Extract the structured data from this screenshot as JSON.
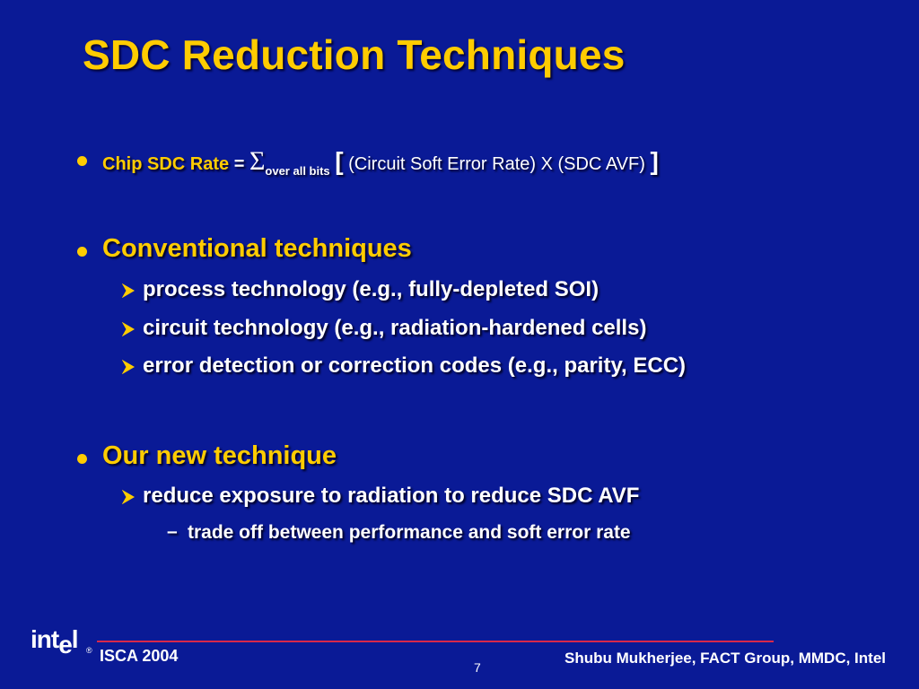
{
  "title": "SDC Reduction Techniques",
  "formula": {
    "term": "Chip SDC Rate",
    "equals": "=",
    "sigma": "Σ",
    "subscript": "over all bits",
    "open_bracket": "[",
    "body": "(Circuit Soft Error Rate) X (SDC AVF)",
    "close_bracket": "]"
  },
  "sections": [
    {
      "heading": "Conventional techniques",
      "items": [
        "process technology (e.g., fully-depleted SOI)",
        "circuit technology (e.g., radiation-hardened cells)",
        "error detection or correction codes (e.g., parity, ECC)"
      ]
    },
    {
      "heading": "Our new technique",
      "items": [
        "reduce exposure to radiation to reduce SDC AVF"
      ],
      "subitems": [
        "trade off between performance and soft error rate"
      ]
    }
  ],
  "footer": {
    "logo": "intel",
    "registered": "®",
    "venue": "ISCA 2004",
    "page_number": "7",
    "author": "Shubu Mukherjee, FACT Group, MMDC, Intel"
  },
  "colors": {
    "background": "#0a1a96",
    "accent": "#ffcc00",
    "text": "#ffffff",
    "rule": "#d8284a"
  }
}
